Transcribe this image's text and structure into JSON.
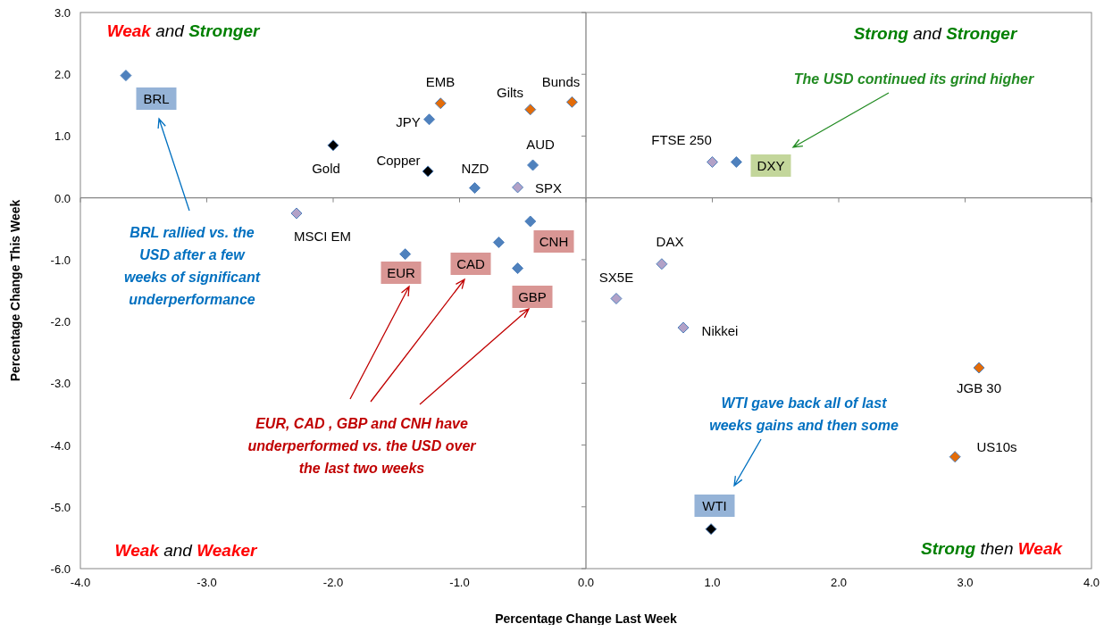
{
  "chart_data": {
    "type": "scatter",
    "xlabel": "Percentage Change Last Week",
    "ylabel": "Percentage Change This Week",
    "xlim": [
      -4,
      4
    ],
    "xticks": [
      {
        "value": -4,
        "label": "-4.0"
      },
      {
        "value": -3,
        "label": "-3.0"
      },
      {
        "value": -2,
        "label": "-2.0"
      },
      {
        "value": -1,
        "label": "-1.0"
      },
      {
        "value": 0,
        "label": "0.0"
      },
      {
        "value": 1,
        "label": "1.0"
      },
      {
        "value": 2,
        "label": "2.0"
      },
      {
        "value": 3,
        "label": "3.0"
      },
      {
        "value": 4,
        "label": "4.0"
      }
    ],
    "ylim": [
      -6,
      3
    ],
    "yticks": [
      {
        "value": -6,
        "label": "-6.0"
      },
      {
        "value": -5,
        "label": "-5.0"
      },
      {
        "value": -4,
        "label": "-4.0"
      },
      {
        "value": -3,
        "label": "-3.0"
      },
      {
        "value": -2,
        "label": "-2.0"
      },
      {
        "value": -1,
        "label": "-1.0"
      },
      {
        "value": 0,
        "label": "0.0"
      },
      {
        "value": 1,
        "label": "1.0"
      },
      {
        "value": 2,
        "label": "2.0"
      },
      {
        "value": 3,
        "label": "3.0"
      }
    ],
    "marker": "diamond",
    "x": [
      -3.64,
      -1.15,
      -0.44,
      -0.11,
      -1.24,
      -2.0,
      -1.25,
      -0.42,
      -0.88,
      -0.54,
      -2.29,
      -0.44,
      -0.69,
      -1.43,
      -0.54,
      1.0,
      1.19,
      0.6,
      0.24,
      0.77,
      3.11,
      2.92,
      0.99
    ],
    "values": [
      1.98,
      1.53,
      1.43,
      1.55,
      1.27,
      0.85,
      0.43,
      0.53,
      0.16,
      0.17,
      -0.25,
      -0.38,
      -0.72,
      -0.91,
      -1.14,
      0.58,
      0.58,
      -1.07,
      -1.63,
      -2.1,
      -2.75,
      -4.19,
      -5.36
    ],
    "colors": [
      "#4f81bd",
      "#e36c09",
      "#e36c09",
      "#e36c09",
      "#4f81bd",
      "#000000",
      "#000000",
      "#4f81bd",
      "#4f81bd",
      "#b2a1c7",
      "#b2a1c7",
      "#4f81bd",
      "#4f81bd",
      "#4f81bd",
      "#4f81bd",
      "#b2a1c7",
      "#4f81bd",
      "#b2a1c7",
      "#b2a1c7",
      "#b2a1c7",
      "#e36c09",
      "#e36c09",
      "#000000"
    ],
    "annotations": [
      "Weak and Stronger",
      "Strong and Stronger",
      "Weak and Weaker",
      "Strong then Weak",
      "BRL rallied vs. the USD after a few weeks of significant underperformance",
      "EUR, CAD , GBP and CNH have underperformed vs. the USD over the last two weeks",
      "WTI gave back all of last weeks gains and then some",
      "The USD continued its grind higher",
      {
        "text": "BRL",
        "x": -3.64,
        "y": 1.98
      },
      {
        "text": "EMB",
        "x": -1.15,
        "y": 1.53
      },
      {
        "text": "Gilts",
        "x": -0.44,
        "y": 1.43
      },
      {
        "text": "Bunds",
        "x": -0.11,
        "y": 1.55
      },
      {
        "text": "JPY",
        "x": -1.24,
        "y": 1.27
      },
      {
        "text": "Gold",
        "x": -2.0,
        "y": 0.85
      },
      {
        "text": "Copper",
        "x": -1.25,
        "y": 0.43
      },
      {
        "text": "AUD",
        "x": -0.42,
        "y": 0.53
      },
      {
        "text": "NZD",
        "x": -0.88,
        "y": 0.16
      },
      {
        "text": "SPX",
        "x": -0.54,
        "y": 0.17
      },
      {
        "text": "MSCI EM",
        "x": -2.29,
        "y": -0.25
      },
      {
        "text": "CNH",
        "x": -0.44,
        "y": -0.38
      },
      {
        "text": "CAD",
        "x": -0.69,
        "y": -0.72
      },
      {
        "text": "EUR",
        "x": -1.43,
        "y": -0.91
      },
      {
        "text": "GBP",
        "x": -0.54,
        "y": -1.14
      },
      {
        "text": "FTSE 250",
        "x": 1.0,
        "y": 0.58
      },
      {
        "text": "DXY",
        "x": 1.19,
        "y": 0.58
      },
      {
        "text": "DAX",
        "x": 0.6,
        "y": -1.07
      },
      {
        "text": "SX5E",
        "x": 0.24,
        "y": -1.63
      },
      {
        "text": "Nikkei",
        "x": 0.77,
        "y": -2.1
      },
      {
        "text": "JGB 30",
        "x": 3.11,
        "y": -2.75
      },
      {
        "text": "US10s",
        "x": 2.92,
        "y": -4.19
      },
      {
        "text": "WTI",
        "x": 0.99,
        "y": -5.36
      }
    ]
  }
}
